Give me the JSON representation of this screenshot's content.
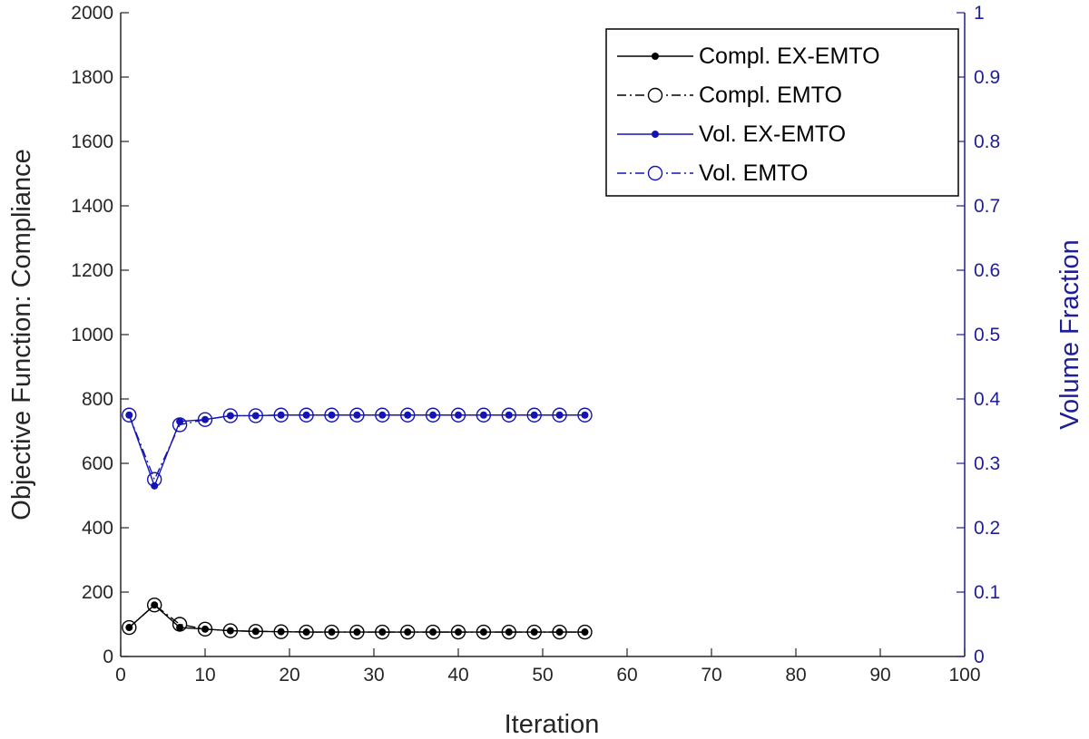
{
  "colors": {
    "compliance": "#000000",
    "volume": "#1414b4",
    "right_axis": "#1e1e96"
  },
  "chart_data": {
    "type": "line",
    "xlabel": "Iteration",
    "ylabel": "Objective Function: Compliance",
    "y2label": "Volume Fraction",
    "xlim": [
      0,
      100
    ],
    "ylim": [
      0,
      2000
    ],
    "y2lim": [
      0,
      1
    ],
    "x_ticks": [
      "0",
      "10",
      "20",
      "30",
      "40",
      "50",
      "60",
      "70",
      "80",
      "90",
      "100"
    ],
    "y_ticks": [
      "0",
      "200",
      "400",
      "600",
      "800",
      "1000",
      "1200",
      "1400",
      "1600",
      "1800",
      "2000"
    ],
    "y2_ticks": [
      "0",
      "0.1",
      "0.2",
      "0.3",
      "0.4",
      "0.5",
      "0.6",
      "0.7",
      "0.8",
      "0.9",
      "1"
    ],
    "legend_position": "top-right",
    "legend": [
      "Compl. EX-EMTO",
      "Compl. EMTO",
      "Vol. EX-EMTO",
      "Vol. EMTO"
    ],
    "x": [
      1,
      4,
      7,
      10,
      13,
      16,
      19,
      22,
      25,
      28,
      31,
      34,
      37,
      40,
      43,
      46,
      49,
      52,
      55
    ],
    "series": [
      {
        "name": "Compl. EX-EMTO",
        "axis": "left",
        "marker": "dot",
        "dash": "solid",
        "values": [
          90,
          160,
          90,
          85,
          80,
          78,
          77,
          76,
          76,
          76,
          76,
          76,
          76,
          76,
          76,
          76,
          76,
          76,
          76
        ]
      },
      {
        "name": "Compl. EMTO",
        "axis": "left",
        "marker": "circle",
        "dash": "dashdot",
        "values": [
          90,
          160,
          100,
          85,
          80,
          78,
          77,
          76,
          76,
          76,
          76,
          76,
          76,
          76,
          76,
          76,
          76,
          76,
          76
        ]
      },
      {
        "name": "Vol. EX-EMTO",
        "axis": "right",
        "marker": "dot",
        "dash": "solid",
        "values": [
          0.375,
          0.265,
          0.365,
          0.368,
          0.374,
          0.374,
          0.375,
          0.375,
          0.375,
          0.375,
          0.375,
          0.375,
          0.375,
          0.375,
          0.375,
          0.375,
          0.375,
          0.375,
          0.375
        ]
      },
      {
        "name": "Vol. EMTO",
        "axis": "right",
        "marker": "circle",
        "dash": "dashdot",
        "values": [
          0.375,
          0.275,
          0.36,
          0.368,
          0.374,
          0.374,
          0.375,
          0.375,
          0.375,
          0.375,
          0.375,
          0.375,
          0.375,
          0.375,
          0.375,
          0.375,
          0.375,
          0.375,
          0.375
        ]
      }
    ]
  }
}
